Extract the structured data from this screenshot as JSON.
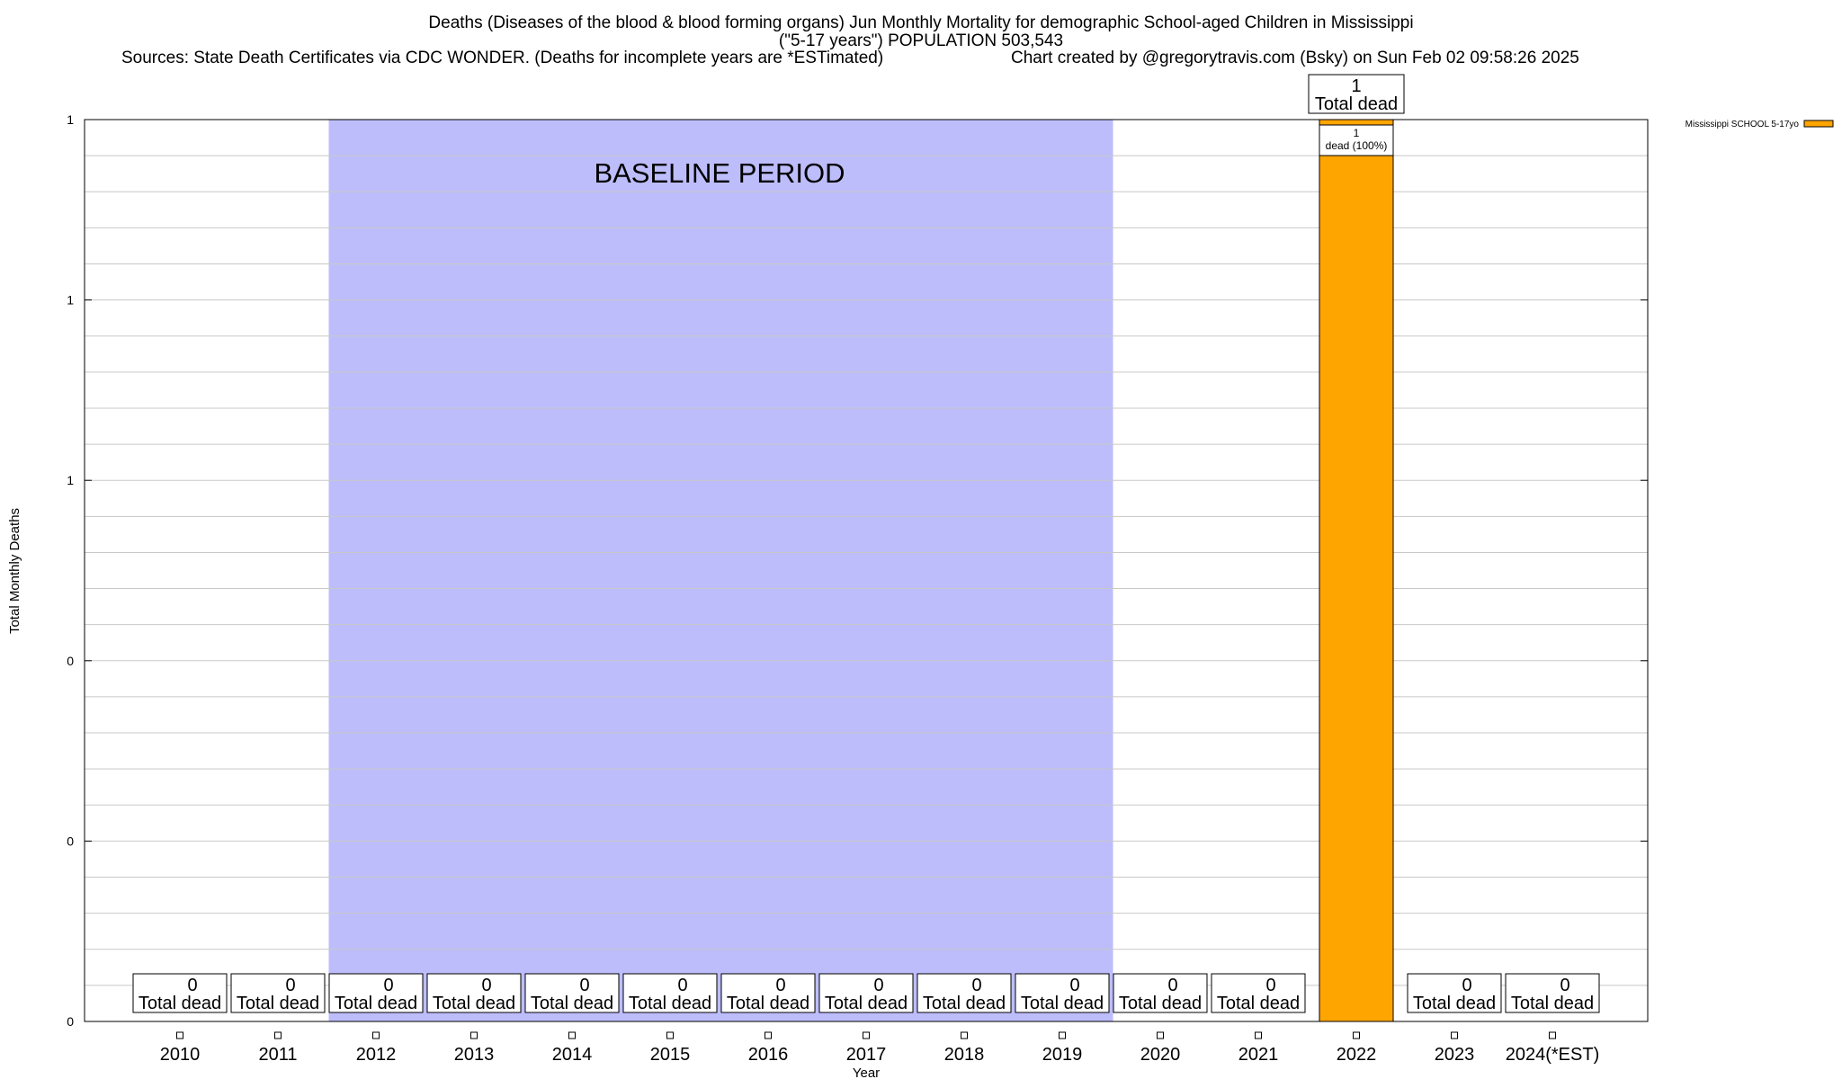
{
  "header": {
    "title_line1": "Deaths (Diseases of the blood & blood forming organs) Jun Monthly Mortality for demographic School-aged Children in Mississippi",
    "title_line2": "(\"5-17 years\") POPULATION 503,543",
    "sources": "Sources: State Death Certificates via CDC WONDER. (Deaths for incomplete years are *ESTimated)",
    "credit": "Chart created by @gregorytravis.com (Bsky) on Sun Feb 02 09:58:26 2025"
  },
  "chart_data": {
    "type": "bar",
    "xlabel": "Year",
    "ylabel": "Total Monthly Deaths",
    "categories": [
      "2010",
      "2011",
      "2012",
      "2013",
      "2014",
      "2015",
      "2016",
      "2017",
      "2018",
      "2019",
      "2020",
      "2021",
      "2022",
      "2023",
      "2024(*EST)"
    ],
    "series": [
      {
        "name": "Mississippi SCHOOL 5-17yo",
        "color": "#FFA500",
        "values": [
          0,
          0,
          0,
          0,
          0,
          0,
          0,
          0,
          0,
          0,
          0,
          0,
          1,
          0,
          0
        ]
      }
    ],
    "total_labels": [
      "0",
      "0",
      "0",
      "0",
      "0",
      "0",
      "0",
      "0",
      "0",
      "0",
      "0",
      "0",
      "1",
      "0",
      "0"
    ],
    "total_suffix": "Total dead",
    "segment_labels": [
      {
        "category": "2022",
        "count": "1",
        "text": "dead (100%)"
      }
    ],
    "ylim": [
      0,
      1
    ],
    "y_tick_labels": [
      "0",
      "0",
      "0",
      "1",
      "1",
      "1"
    ],
    "grid": true,
    "legend_position": "top-right",
    "baseline": {
      "label": "BASELINE PERIOD",
      "start": "2012",
      "end": "2019",
      "color": "#BDBDFB"
    }
  }
}
